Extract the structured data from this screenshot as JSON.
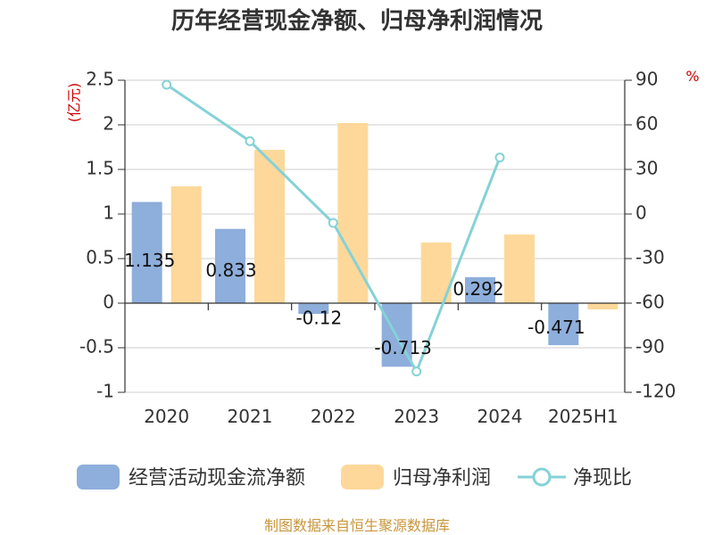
{
  "chart_data": {
    "type": "bar",
    "title": "历年经营现金净额、归母净利润情况",
    "categories": [
      "2020",
      "2021",
      "2022",
      "2023",
      "2024",
      "2025H1"
    ],
    "left_axis": {
      "unit": "(亿元)",
      "ylim": [
        -1,
        2.5
      ],
      "ticks": [
        -1,
        -0.5,
        0,
        0.5,
        1,
        1.5,
        2,
        2.5
      ],
      "tick_labels": [
        "-1",
        "-0.5",
        "0",
        "0.5",
        "1",
        "1.5",
        "2",
        "2.5"
      ]
    },
    "right_axis": {
      "unit": "%",
      "ylim": [
        -120,
        90
      ],
      "ticks": [
        -120,
        -90,
        -60,
        -30,
        0,
        30,
        60,
        90
      ],
      "tick_labels": [
        "-120",
        "-90",
        "-60",
        "-30",
        "0",
        "30",
        "60",
        "90"
      ]
    },
    "series": [
      {
        "name": "经营活动现金流净额",
        "type": "bar",
        "axis": "left",
        "color": "#8eaedb",
        "values": [
          1.135,
          0.833,
          -0.12,
          -0.713,
          0.292,
          -0.471
        ],
        "labels": [
          "1.135",
          "0.833",
          "-0.12",
          "-0.713",
          "0.292",
          "-0.471"
        ]
      },
      {
        "name": "归母净利润",
        "type": "bar",
        "axis": "left",
        "color": "#fdd89a",
        "values": [
          1.31,
          1.72,
          2.02,
          0.68,
          0.77,
          -0.07
        ]
      },
      {
        "name": "净现比",
        "type": "line",
        "axis": "right",
        "color": "#85d2d6",
        "values": [
          87,
          49,
          -6,
          -106,
          38,
          null
        ]
      }
    ],
    "grid": true,
    "legend_position": "bottom"
  },
  "source": "制图数据来自恒生聚源数据库"
}
